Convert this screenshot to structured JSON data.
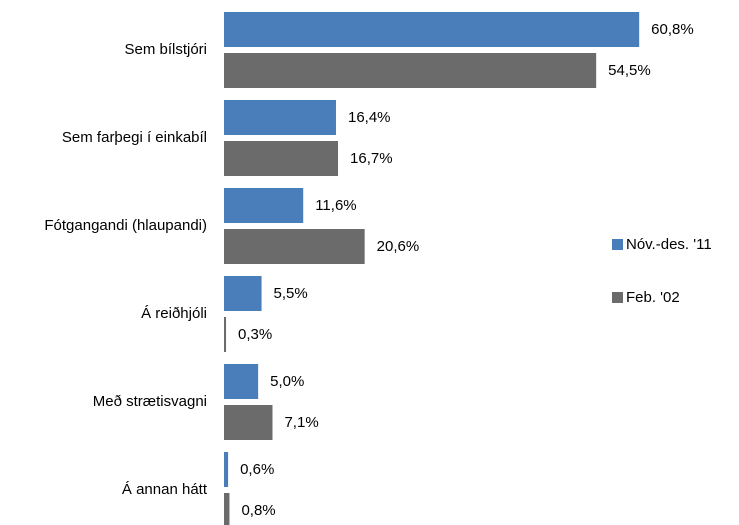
{
  "chart_data": {
    "type": "hbar",
    "categories": [
      "Sem bílstjóri",
      "Sem farþegi í einkabíl",
      "Fótgangandi (hlaupandi)",
      "Á reiðhjóli",
      "Með strætisvagni",
      "Á annan hátt"
    ],
    "series": [
      {
        "name": "Nóv.-des. '11",
        "color": "#4a7ebb",
        "values": [
          60.8,
          16.4,
          11.6,
          5.5,
          5.0,
          0.6
        ],
        "value_labels": [
          "60,8%",
          "16,4%",
          "11,6%",
          "5,5%",
          "5,0%",
          "0,6%"
        ]
      },
      {
        "name": "Feb. '02",
        "color": "#6b6b6b",
        "values": [
          54.5,
          16.7,
          20.6,
          0.3,
          7.1,
          0.8
        ],
        "value_labels": [
          "54,5%",
          "16,7%",
          "20,6%",
          "0,3%",
          "7,1%",
          "0,8%"
        ]
      }
    ],
    "xlim": [
      0,
      70
    ],
    "legend": "right"
  }
}
